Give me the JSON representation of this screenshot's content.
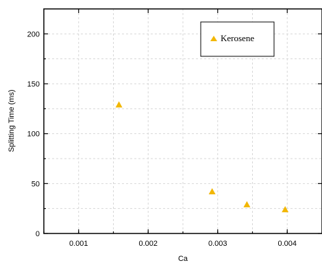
{
  "chart_data": {
    "type": "scatter",
    "xlabel": "Ca",
    "ylabel": "Splitting Time (ms)",
    "xlim": [
      0.0005,
      0.0045
    ],
    "ylim": [
      0,
      225
    ],
    "x_ticks": [
      0.001,
      0.002,
      0.003,
      0.004
    ],
    "x_tick_labels": [
      "0.001",
      "0.002",
      "0.003",
      "0.004"
    ],
    "y_ticks": [
      0,
      50,
      100,
      150,
      200
    ],
    "y_tick_labels": [
      "0",
      "50",
      "100",
      "150",
      "200"
    ],
    "grid": true,
    "legend_position": "top-right",
    "series": [
      {
        "name": "Kerosene",
        "marker": "triangle",
        "color": "#f2b705",
        "x": [
          0.00158,
          0.00292,
          0.00342,
          0.00397
        ],
        "y": [
          129,
          42,
          29,
          24
        ]
      }
    ]
  }
}
